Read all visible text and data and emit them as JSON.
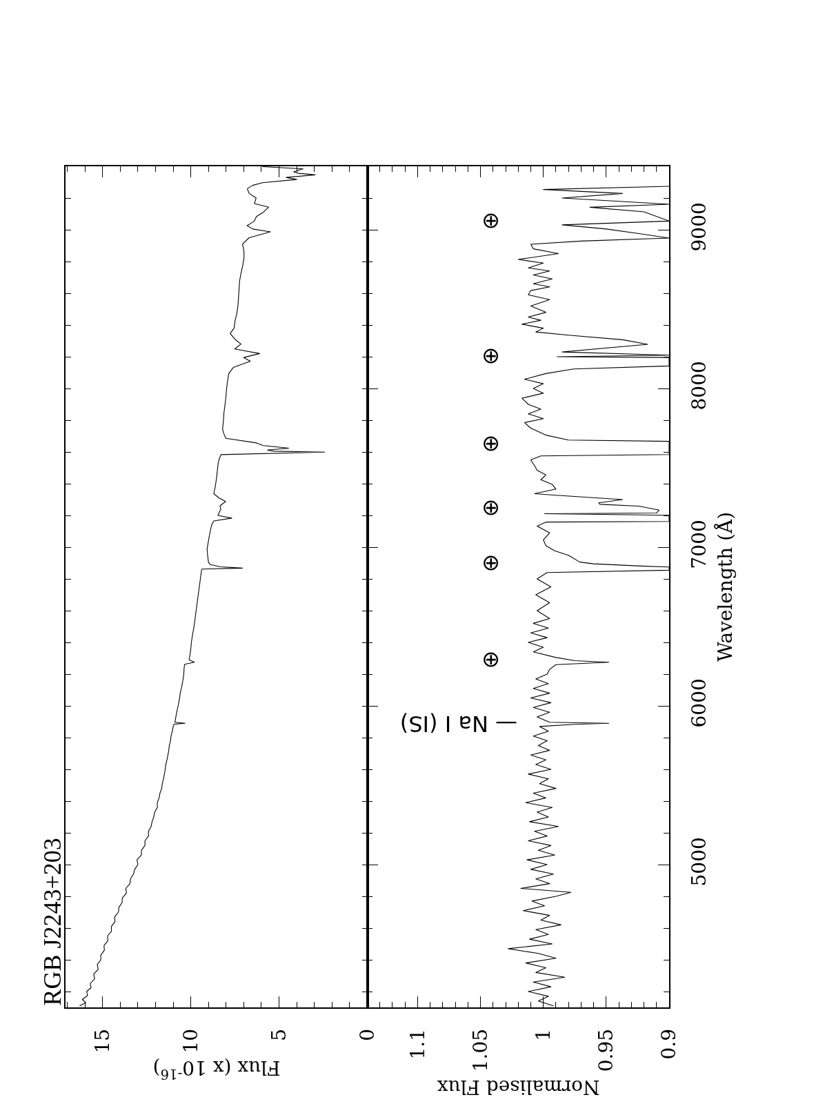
{
  "chart_data": [
    {
      "type": "line",
      "title": "RGB J2243+203",
      "xlabel": "Flux (x 10$^{-16}$)",
      "series": [
        {
          "color": "#000000",
          "x": [
            16.3,
            15.95,
            16.15,
            15.85,
            15.9,
            15.65,
            15.7,
            15.45,
            15.5,
            15.25,
            15.3,
            15.1,
            15.1,
            14.9,
            14.92,
            14.7,
            14.72,
            14.5,
            14.5,
            14.3,
            14.32,
            14.1,
            14.08,
            13.9,
            13.88,
            13.65,
            13.68,
            13.45,
            13.42,
            13.25,
            13.18,
            13.0,
            13.05,
            12.8,
            12.8,
            12.6,
            12.6,
            12.4,
            12.4,
            12.25,
            12.2,
            12.1,
            12.05,
            11.9,
            11.9,
            11.8,
            11.75,
            11.65,
            11.62,
            11.55,
            11.5,
            11.45,
            11.42,
            11.35,
            11.3,
            11.25,
            11.22,
            11.15,
            11.12,
            11.05,
            11.0,
            10.95,
            10.33,
            10.9,
            10.85,
            10.8,
            10.72,
            10.65,
            10.6,
            10.52,
            10.45,
            10.4,
            10.38,
            10.35,
            9.8,
            10.1,
            10.05,
            10.0,
            9.97,
            9.9,
            9.82,
            9.76,
            9.7,
            9.64,
            9.58,
            9.52,
            9.46,
            9.4,
            9.38,
            7.07,
            8.3,
            8.9,
            9.0,
            9.05,
            9.08,
            9.0,
            8.92,
            8.82,
            8.7,
            7.68,
            8.47,
            8.3,
            8.35,
            8.03,
            8.4,
            8.7,
            8.62,
            8.55,
            8.5,
            8.45,
            8.38,
            8.29,
            2.42,
            5.3,
            5.67,
            4.45,
            5.9,
            6.28,
            8.02,
            8.15,
            8.2,
            8.15,
            8.12,
            8.06,
            8.02,
            7.98,
            7.93,
            7.85,
            7.59,
            6.63,
            7.0,
            6.1,
            7.51,
            7.16,
            7.5,
            7.77,
            7.55,
            7.5,
            7.4,
            7.33,
            7.3,
            7.27,
            7.24,
            7.15,
            7.05,
            6.98,
            7.0,
            7.07,
            6.7,
            5.49,
            6.5,
            6.81,
            6.4,
            6.28,
            5.9,
            5.59,
            6.4,
            6.3,
            6.7,
            6.8,
            6.5,
            5.93,
            4.0,
            4.6,
            2.95,
            3.9,
            4.17,
            3.64,
            5.94
          ],
          "values": [
            4110,
            4130,
            4150,
            4175,
            4200,
            4225,
            4250,
            4280,
            4310,
            4340,
            4370,
            4400,
            4430,
            4460,
            4490,
            4520,
            4550,
            4580,
            4610,
            4640,
            4670,
            4700,
            4730,
            4760,
            4790,
            4820,
            4850,
            4880,
            4910,
            4940,
            4970,
            5000,
            5030,
            5060,
            5090,
            5120,
            5150,
            5180,
            5210,
            5240,
            5270,
            5300,
            5330,
            5360,
            5390,
            5420,
            5450,
            5480,
            5510,
            5540,
            5570,
            5600,
            5630,
            5660,
            5690,
            5720,
            5750,
            5780,
            5810,
            5840,
            5870,
            5885,
            5890,
            5897,
            5930,
            5960,
            6000,
            6040,
            6080,
            6120,
            6160,
            6200,
            6240,
            6262,
            6275,
            6290,
            6320,
            6360,
            6400,
            6450,
            6500,
            6550,
            6600,
            6650,
            6700,
            6750,
            6800,
            6850,
            6862,
            6868,
            6876,
            6890,
            6905,
            6950,
            6990,
            7040,
            7090,
            7140,
            7165,
            7183,
            7200,
            7240,
            7260,
            7288,
            7310,
            7337,
            7380,
            7430,
            7480,
            7530,
            7560,
            7583,
            7599,
            7605,
            7612,
            7624,
            7640,
            7657,
            7686,
            7720,
            7744,
            7800,
            7850,
            7900,
            7939,
            7990,
            8040,
            8094,
            8133,
            8172,
            8195,
            8220,
            8249,
            8280,
            8310,
            8346,
            8380,
            8423,
            8470,
            8521,
            8570,
            8620,
            8676,
            8730,
            8780,
            8831,
            8870,
            8909,
            8950,
            8987,
            9005,
            9026,
            9055,
            9084,
            9110,
            9142,
            9165,
            9200,
            9230,
            9258,
            9280,
            9297,
            9317,
            9330,
            9346,
            9356,
            9365,
            9384,
            9398
          ]
        }
      ],
      "xlim": [
        17.1,
        0
      ],
      "ylim": [
        4100,
        9400
      ],
      "xticks": [
        0,
        {
          "value": 1,
          "label": null
        },
        {
          "value": 2,
          "label": null
        },
        {
          "value": 3,
          "label": null
        },
        {
          "value": 4,
          "label": null
        },
        5,
        {
          "value": 6,
          "label": null
        },
        {
          "value": 7,
          "label": null
        },
        {
          "value": 8,
          "label": null
        },
        {
          "value": 9,
          "label": null
        },
        10,
        {
          "value": 11,
          "label": null
        },
        {
          "value": 12,
          "label": null
        },
        {
          "value": 13,
          "label": null
        },
        {
          "value": 14,
          "label": null
        },
        15,
        {
          "value": 16,
          "label": null
        },
        {
          "value": 17,
          "label": null
        }
      ],
      "yticks": [
        {
          "value": 4200,
          "label": null
        },
        {
          "value": 4400,
          "label": null
        },
        {
          "value": 4600,
          "label": null
        },
        {
          "value": 4800,
          "label": null
        },
        {
          "value": 5000,
          "label": null
        },
        {
          "value": 5200,
          "label": null
        },
        {
          "value": 5400,
          "label": null
        },
        {
          "value": 5600,
          "label": null
        },
        {
          "value": 5800,
          "label": null
        },
        {
          "value": 6000,
          "label": null
        },
        {
          "value": 6200,
          "label": null
        },
        {
          "value": 6400,
          "label": null
        },
        {
          "value": 6600,
          "label": null
        },
        {
          "value": 6800,
          "label": null
        },
        {
          "value": 7000,
          "label": null
        },
        {
          "value": 7200,
          "label": null
        },
        {
          "value": 7400,
          "label": null
        },
        {
          "value": 7600,
          "label": null
        },
        {
          "value": 7800,
          "label": null
        },
        {
          "value": 8000,
          "label": null
        },
        {
          "value": 8200,
          "label": null
        },
        {
          "value": 8400,
          "label": null
        },
        {
          "value": 8600,
          "label": null
        },
        {
          "value": 8800,
          "label": null
        },
        {
          "value": 9000,
          "label": null
        },
        {
          "value": 9200,
          "label": null
        }
      ],
      "tick_labels": "x"
    },
    {
      "type": "line",
      "xlabel": "Normalised Flux",
      "ylabel": "Wavelength (Å)",
      "series": [
        {
          "color": "#000000",
          "x": [
            0.992,
            1.004,
            0.996,
            1.012,
            0.994,
            1.008,
            0.983,
            1.006,
            0.998,
            1.014,
            0.99,
            1.004,
            1.028,
            0.993,
            1.011,
            0.996,
            1.006,
            0.986,
            1.002,
            0.995,
            1.016,
            0.999,
            1.009,
            0.99,
            0.978,
            1.018,
            0.995,
            1.006,
            0.992,
            1.01,
            0.997,
            1.013,
            0.991,
            1.004,
            0.994,
            1.012,
            0.997,
            1.007,
            0.988,
            1.011,
            0.996,
            1.005,
            0.993,
            1.014,
            0.998,
            1.008,
            0.99,
            1.003,
            0.996,
            1.012,
            0.994,
            1.006,
            0.998,
            1.01,
            0.995,
            1.004,
            0.997,
            1.008,
            0.996,
            1.003,
            0.975,
            0.948,
            0.995,
            1.005,
            0.995,
            1.008,
            0.994,
            1.01,
            0.995,
            1.008,
            0.996,
            1.006,
            0.997,
            0.995,
            0.99,
            0.948,
            0.975,
            0.99,
            1.008,
            1.0,
            1.012,
            0.997,
            1.01,
            0.996,
            1.008,
            0.995,
            1.005,
            0.995,
            1.006,
            0.994,
            1.005,
            0.997,
            0.9,
            0.9,
            0.922,
            0.96,
            0.971,
            0.98,
            0.991,
            0.998,
            1.0,
            0.995,
            1.005,
            0.998,
            0.9,
            0.9,
            0.999,
            0.91,
            0.908,
            0.924,
            0.955,
            0.956,
            0.937,
            0.99,
            1.007,
            0.99,
            0.993,
            1.002,
            0.998,
            1.005,
            1.007,
            1.01,
            1.002,
            0.9,
            0.9,
            0.98,
            0.998,
            1.01,
            1.015,
            1.0,
            1.012,
            1.002,
            1.012,
            1.017,
            1.0,
            1.008,
            1.0,
            1.015,
            0.998,
            0.976,
            0.9,
            0.9,
            0.989,
            0.9,
            0.985,
            0.917,
            0.937,
            0.98,
            1.006,
            1.0,
            1.017,
            1.002,
            1.012,
            0.998,
            1.01,
            0.995,
            1.012,
            1.01,
            0.995,
            1.008,
            0.993,
            1.008,
            0.995,
            1.012,
            1.0,
            1.02,
            0.988,
            1.008,
            1.01,
            0.97,
            0.9,
            0.925,
            0.95,
            0.985,
            0.9,
            0.92,
            0.963,
            0.9,
            0.985,
            0.937,
            1.0,
            0.9
          ],
          "values": [
            4110,
            4140,
            4170,
            4200,
            4230,
            4260,
            4290,
            4320,
            4350,
            4380,
            4410,
            4440,
            4470,
            4500,
            4530,
            4560,
            4590,
            4620,
            4650,
            4680,
            4710,
            4740,
            4770,
            4800,
            4825,
            4850,
            4880,
            4910,
            4940,
            4970,
            5000,
            5030,
            5060,
            5090,
            5120,
            5150,
            5180,
            5210,
            5240,
            5270,
            5300,
            5330,
            5360,
            5390,
            5420,
            5450,
            5480,
            5510,
            5540,
            5570,
            5600,
            5630,
            5660,
            5690,
            5720,
            5750,
            5780,
            5810,
            5840,
            5870,
            5884,
            5890,
            5897,
            5930,
            5960,
            5990,
            6020,
            6050,
            6080,
            6110,
            6140,
            6170,
            6200,
            6230,
            6260,
            6275,
            6285,
            6305,
            6340,
            6370,
            6400,
            6430,
            6460,
            6490,
            6520,
            6550,
            6600,
            6650,
            6700,
            6750,
            6800,
            6840,
            6855,
            6875,
            6881,
            6895,
            6906,
            6949,
            6977,
            7010,
            7046,
            7090,
            7133,
            7158,
            7162,
            7201,
            7211,
            7215,
            7234,
            7259,
            7270,
            7279,
            7300,
            7327,
            7337,
            7366,
            7396,
            7425,
            7455,
            7485,
            7513,
            7550,
            7575,
            7584,
            7667,
            7675,
            7706,
            7750,
            7785,
            7810,
            7840,
            7870,
            7900,
            7939,
            7970,
            8000,
            8030,
            8058,
            8094,
            8123,
            8142,
            8195,
            8200,
            8210,
            8230,
            8278,
            8307,
            8336,
            8356,
            8380,
            8405,
            8430,
            8450,
            8480,
            8520,
            8560,
            8590,
            8617,
            8640,
            8660,
            8690,
            8715,
            8740,
            8760,
            8790,
            8813,
            8850,
            8880,
            8909,
            8929,
            8948,
            8977,
            9005,
            9031,
            9055,
            9113,
            9142,
            9161,
            9200,
            9229,
            9254,
            9274
          ]
        }
      ],
      "xlim": [
        1.14,
        0.9
      ],
      "ylim": [
        4100,
        9400
      ],
      "xticks": [
        {
          "value": 1.13,
          "label": null
        },
        {
          "value": 1.12,
          "label": null
        },
        {
          "value": 1.11,
          "label": null
        },
        1.1,
        {
          "value": 1.09,
          "label": null
        },
        {
          "value": 1.08,
          "label": null
        },
        {
          "value": 1.07,
          "label": null
        },
        {
          "value": 1.06,
          "label": null
        },
        1.05,
        {
          "value": 1.04,
          "label": null
        },
        {
          "value": 1.03,
          "label": null
        },
        {
          "value": 1.02,
          "label": null
        },
        {
          "value": 1.01,
          "label": null
        },
        1,
        {
          "value": 0.99,
          "label": null
        },
        {
          "value": 0.98,
          "label": null
        },
        {
          "value": 0.97,
          "label": null
        },
        {
          "value": 0.96,
          "label": null
        },
        0.95,
        {
          "value": 0.94,
          "label": null
        },
        {
          "value": 0.93,
          "label": null
        },
        {
          "value": 0.92,
          "label": null
        },
        {
          "value": 0.91,
          "label": null
        },
        0.9
      ],
      "yticks": [
        {
          "value": 4200,
          "label": null
        },
        {
          "value": 4400,
          "label": null
        },
        {
          "value": 4600,
          "label": null
        },
        {
          "value": 4800,
          "label": null
        },
        5000,
        {
          "value": 5200,
          "label": null
        },
        {
          "value": 5400,
          "label": null
        },
        {
          "value": 5600,
          "label": null
        },
        {
          "value": 5800,
          "label": null
        },
        6000,
        {
          "value": 6200,
          "label": null
        },
        {
          "value": 6400,
          "label": null
        },
        {
          "value": 6600,
          "label": null
        },
        {
          "value": 6800,
          "label": null
        },
        7000,
        {
          "value": 7200,
          "label": null
        },
        {
          "value": 7400,
          "label": null
        },
        {
          "value": 7600,
          "label": null
        },
        {
          "value": 7800,
          "label": null
        },
        8000,
        {
          "value": 8200,
          "label": null
        },
        {
          "value": 8400,
          "label": null
        },
        {
          "value": 8600,
          "label": null
        },
        {
          "value": 8800,
          "label": null
        },
        9000,
        {
          "value": 9200,
          "label": null
        }
      ],
      "annotations": [
        "— Na I (IS)",
        "⊕",
        "⊕",
        "⊕",
        "⊕",
        "⊕",
        "⊕"
      ]
    }
  ]
}
